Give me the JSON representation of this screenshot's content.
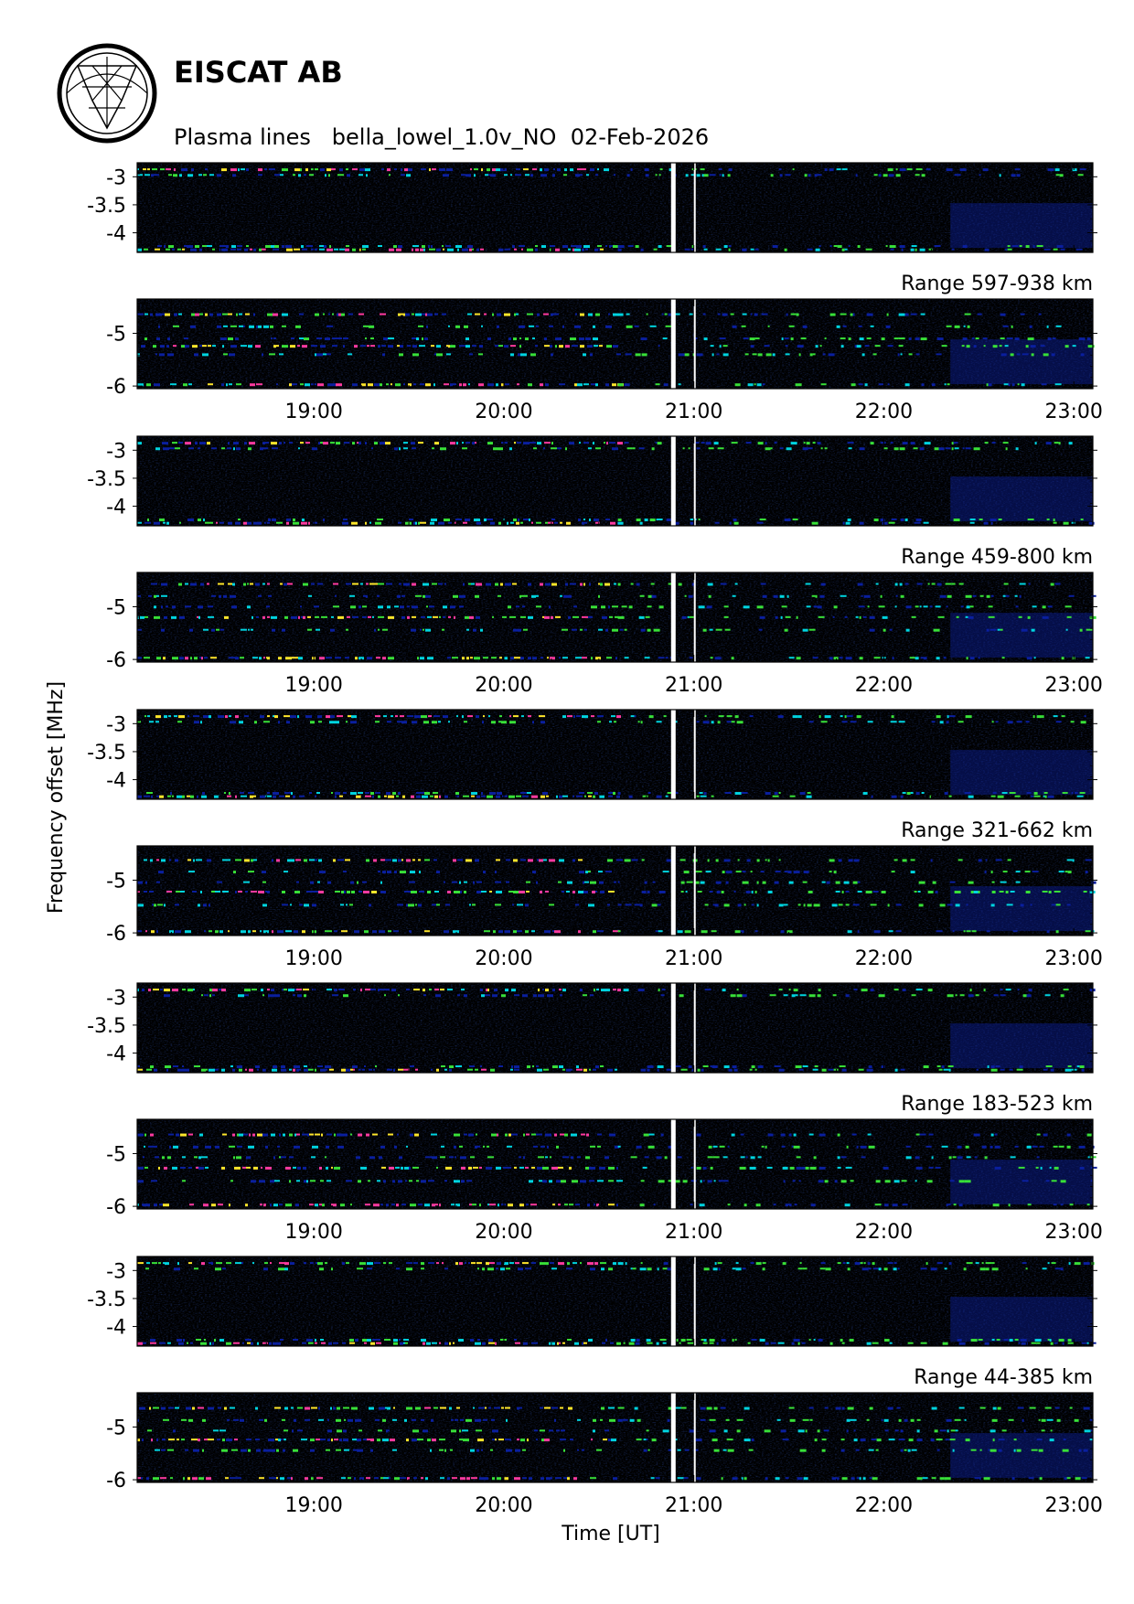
{
  "header": {
    "organization": "EISCAT AB",
    "subtitle": "Plasma lines   bella_lowel_1.0v_NO  02-Feb-2026",
    "logo": "eiscat-logo-icon"
  },
  "chart_data": {
    "type": "heatmap",
    "ylabel": "Frequency offset [MHz]",
    "xlabel": "Time [UT]",
    "x_tick_labels": [
      "19:00",
      "20:00",
      "21:00",
      "22:00",
      "23:00"
    ],
    "x_ticks_hours": [
      19,
      20,
      21,
      22,
      23
    ],
    "xlim_hours": [
      18.07,
      23.1
    ],
    "data_gap_hours": [
      20.88,
      21.0
    ],
    "colors": {
      "background": "#000000",
      "low": "#0a1f9e",
      "mid": "#00d4e0",
      "high1": "#38e038",
      "high2": "#ffe62b",
      "peak": "#ff3aa0",
      "gap": "#ffffff"
    },
    "panel_groups": [
      {
        "range_label": "Range 597-938 km",
        "upper": {
          "ylim": [
            -4.35,
            -2.75
          ],
          "y_tick_labels": [
            "-3",
            "-3.5",
            "-4"
          ],
          "y_ticks": [
            -3,
            -3.5,
            -4
          ]
        },
        "lower": {
          "ylim": [
            -6.05,
            -4.35
          ],
          "y_tick_labels": [
            "-5",
            "-6"
          ],
          "y_ticks": [
            -5,
            -6
          ]
        },
        "lower_lines_mhz": [
          -4.62,
          -4.85,
          -5.08,
          -5.22,
          -5.38,
          -5.95
        ]
      },
      {
        "range_label": "Range 459-800 km",
        "upper": {
          "ylim": [
            -4.35,
            -2.75
          ],
          "y_tick_labels": [
            "-3",
            "-3.5",
            "-4"
          ],
          "y_ticks": [
            -3,
            -3.5,
            -4
          ]
        },
        "lower": {
          "ylim": [
            -6.05,
            -4.35
          ],
          "y_tick_labels": [
            "-5",
            "-6"
          ],
          "y_ticks": [
            -5,
            -6
          ]
        },
        "lower_lines_mhz": [
          -4.55,
          -4.78,
          -4.98,
          -5.18,
          -5.42,
          -5.95
        ]
      },
      {
        "range_label": "Range 321-662 km",
        "upper": {
          "ylim": [
            -4.35,
            -2.75
          ],
          "y_tick_labels": [
            "-3",
            "-3.5",
            "-4"
          ],
          "y_ticks": [
            -3,
            -3.5,
            -4
          ]
        },
        "lower": {
          "ylim": [
            -6.05,
            -4.35
          ],
          "y_tick_labels": [
            "-5",
            "-6"
          ],
          "y_ticks": [
            -5,
            -6
          ]
        },
        "lower_lines_mhz": [
          -4.6,
          -4.82,
          -5.02,
          -5.2,
          -5.45,
          -5.95
        ]
      },
      {
        "range_label": "Range 183-523 km",
        "upper": {
          "ylim": [
            -4.35,
            -2.75
          ],
          "y_tick_labels": [
            "-3",
            "-3.5",
            "-4"
          ],
          "y_ticks": [
            -3,
            -3.5,
            -4
          ]
        },
        "lower": {
          "ylim": [
            -6.05,
            -4.35
          ],
          "y_tick_labels": [
            "-5",
            "-6"
          ],
          "y_ticks": [
            -5,
            -6
          ]
        },
        "lower_lines_mhz": [
          -4.62,
          -4.85,
          -5.05,
          -5.25,
          -5.5,
          -5.95
        ]
      },
      {
        "range_label": "Range 44-385 km",
        "upper": {
          "ylim": [
            -4.35,
            -2.75
          ],
          "y_tick_labels": [
            "-3",
            "-3.5",
            "-4"
          ],
          "y_ticks": [
            -3,
            -3.5,
            -4
          ]
        },
        "lower": {
          "ylim": [
            -6.05,
            -4.35
          ],
          "y_tick_labels": [
            "-5",
            "-6"
          ],
          "y_ticks": [
            -5,
            -6
          ]
        },
        "lower_lines_mhz": [
          -4.62,
          -4.85,
          -5.05,
          -5.22,
          -5.42,
          -5.95
        ]
      }
    ],
    "upper_lines_mhz": [
      -2.85,
      -2.95,
      -4.22,
      -4.28
    ],
    "grid": false,
    "legend": "none"
  }
}
